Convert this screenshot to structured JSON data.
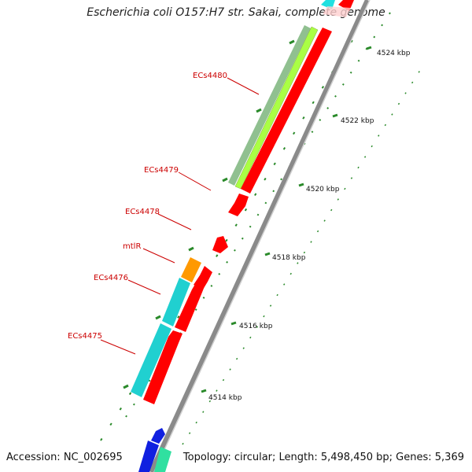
{
  "header": {
    "title": "Escherichia coli O157:H7 str. Sakai, complete genome"
  },
  "footer": {
    "accession": "Accession: NC_002695",
    "summary": "Topology: circular; Length: 5,498,450 bp; Genes: 5,369"
  },
  "colors": {
    "forward_cds": "#ff0000",
    "reverse_cds": "#20d0d0",
    "highlight_orange": "#ff9900",
    "pale_green": "#90c090",
    "lime": "#aaff44",
    "blue": "#1020e0",
    "teal_green": "#30e0a0",
    "backbone": "#888888",
    "ticks": "#2a8a2a",
    "label_text": "#cc0000"
  },
  "scale_ticks": [
    "4514 kbp",
    "4516 kbp",
    "4518 kbp",
    "4520 kbp",
    "4522 kbp",
    "4524 kbp"
  ],
  "gene_labels": [
    "ECs4475",
    "ECs4476",
    "mtlR",
    "ECs4478",
    "ECs4479",
    "ECs4480"
  ]
}
